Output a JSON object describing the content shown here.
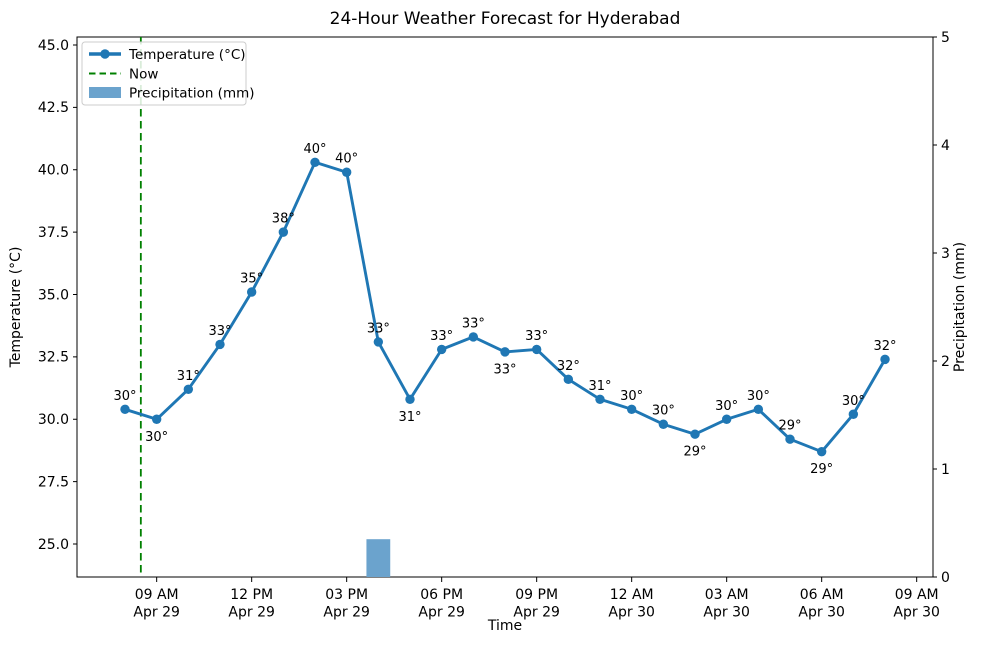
{
  "chart_data": {
    "type": "line+bar",
    "title": "24-Hour Weather Forecast for Hyderabad",
    "xlabel": "Time",
    "ylabel_left": "Temperature (°C)",
    "ylabel_right": "Precipitation (mm)",
    "grid": false,
    "legend_position": "upper-left",
    "legend": [
      {
        "kind": "line-marker",
        "label": "Temperature (°C)",
        "color": "#1f77b4"
      },
      {
        "kind": "dashed-line",
        "label": "Now",
        "color": "#008000"
      },
      {
        "kind": "patch",
        "label": "Precipitation (mm)",
        "color": "#6ba3cd"
      }
    ],
    "now_line": {
      "label": "Now",
      "color": "#008000",
      "hour_offset": 0.5
    },
    "line_color": "#1f77b4",
    "bar_color": "#6ba3cd",
    "ylim_right": [
      0,
      5
    ],
    "left_tick_range": [
      25.0,
      45.0
    ],
    "axes": {
      "left_ticks": [
        {
          "value": 45.0,
          "label": "45.0"
        },
        {
          "value": 42.5,
          "label": "42.5"
        },
        {
          "value": 40.0,
          "label": "40.0"
        },
        {
          "value": 37.5,
          "label": "37.5"
        },
        {
          "value": 35.0,
          "label": "35.0"
        },
        {
          "value": 32.5,
          "label": "32.5"
        },
        {
          "value": 30.0,
          "label": "30.0"
        },
        {
          "value": 27.5,
          "label": "27.5"
        },
        {
          "value": 25.0,
          "label": "25.0"
        }
      ],
      "right_ticks": [
        {
          "value": 5,
          "label": "5"
        },
        {
          "value": 4,
          "label": "4"
        },
        {
          "value": 3,
          "label": "3"
        },
        {
          "value": 2,
          "label": "2"
        },
        {
          "value": 1,
          "label": "1"
        },
        {
          "value": 0,
          "label": "0"
        }
      ],
      "x_ticks": [
        {
          "hour_offset": 1,
          "line1": "09 AM",
          "line2": "Apr 29"
        },
        {
          "hour_offset": 4,
          "line1": "12 PM",
          "line2": "Apr 29"
        },
        {
          "hour_offset": 7,
          "line1": "03 PM",
          "line2": "Apr 29"
        },
        {
          "hour_offset": 10,
          "line1": "06 PM",
          "line2": "Apr 29"
        },
        {
          "hour_offset": 13,
          "line1": "09 PM",
          "line2": "Apr 29"
        },
        {
          "hour_offset": 16,
          "line1": "12 AM",
          "line2": "Apr 30"
        },
        {
          "hour_offset": 19,
          "line1": "03 AM",
          "line2": "Apr 30"
        },
        {
          "hour_offset": 22,
          "line1": "06 AM",
          "line2": "Apr 30"
        },
        {
          "hour_offset": 25,
          "line1": "09 AM",
          "line2": "Apr 30"
        }
      ]
    },
    "points": [
      {
        "time": "08 AM",
        "date": "Apr 29",
        "temp": 30.4,
        "temp_label": "30°",
        "label_side": "above",
        "precip": 0
      },
      {
        "time": "09 AM",
        "date": "Apr 29",
        "temp": 30.0,
        "temp_label": "30°",
        "label_side": "below",
        "precip": 0
      },
      {
        "time": "10 AM",
        "date": "Apr 29",
        "temp": 31.2,
        "temp_label": "31°",
        "label_side": "above",
        "precip": 0
      },
      {
        "time": "11 AM",
        "date": "Apr 29",
        "temp": 33.0,
        "temp_label": "33°",
        "label_side": "above",
        "precip": 0
      },
      {
        "time": "12 PM",
        "date": "Apr 29",
        "temp": 35.1,
        "temp_label": "35°",
        "label_side": "above",
        "precip": 0
      },
      {
        "time": "01 PM",
        "date": "Apr 29",
        "temp": 37.5,
        "temp_label": "38°",
        "label_side": "above",
        "precip": 0
      },
      {
        "time": "02 PM",
        "date": "Apr 29",
        "temp": 40.3,
        "temp_label": "40°",
        "label_side": "above",
        "precip": 0
      },
      {
        "time": "03 PM",
        "date": "Apr 29",
        "temp": 39.9,
        "temp_label": "40°",
        "label_side": "above",
        "precip": 0
      },
      {
        "time": "04 PM",
        "date": "Apr 29",
        "temp": 33.1,
        "temp_label": "33°",
        "label_side": "above",
        "precip": 0.35
      },
      {
        "time": "05 PM",
        "date": "Apr 29",
        "temp": 30.8,
        "temp_label": "31°",
        "label_side": "below",
        "precip": 0
      },
      {
        "time": "06 PM",
        "date": "Apr 29",
        "temp": 32.8,
        "temp_label": "33°",
        "label_side": "above",
        "precip": 0
      },
      {
        "time": "07 PM",
        "date": "Apr 29",
        "temp": 33.3,
        "temp_label": "33°",
        "label_side": "above",
        "precip": 0
      },
      {
        "time": "08 PM",
        "date": "Apr 29",
        "temp": 32.7,
        "temp_label": "33°",
        "label_side": "below",
        "precip": 0
      },
      {
        "time": "09 PM",
        "date": "Apr 29",
        "temp": 32.8,
        "temp_label": "33°",
        "label_side": "above",
        "precip": 0
      },
      {
        "time": "10 PM",
        "date": "Apr 29",
        "temp": 31.6,
        "temp_label": "32°",
        "label_side": "above",
        "precip": 0
      },
      {
        "time": "11 PM",
        "date": "Apr 29",
        "temp": 30.8,
        "temp_label": "31°",
        "label_side": "above",
        "precip": 0
      },
      {
        "time": "12 AM",
        "date": "Apr 30",
        "temp": 30.4,
        "temp_label": "30°",
        "label_side": "above",
        "precip": 0
      },
      {
        "time": "01 AM",
        "date": "Apr 30",
        "temp": 29.8,
        "temp_label": "30°",
        "label_side": "above",
        "precip": 0
      },
      {
        "time": "02 AM",
        "date": "Apr 30",
        "temp": 29.4,
        "temp_label": "29°",
        "label_side": "below",
        "precip": 0
      },
      {
        "time": "03 AM",
        "date": "Apr 30",
        "temp": 30.0,
        "temp_label": "30°",
        "label_side": "above",
        "precip": 0
      },
      {
        "time": "04 AM",
        "date": "Apr 30",
        "temp": 30.4,
        "temp_label": "30°",
        "label_side": "above",
        "precip": 0
      },
      {
        "time": "05 AM",
        "date": "Apr 30",
        "temp": 29.2,
        "temp_label": "29°",
        "label_side": "above",
        "precip": 0
      },
      {
        "time": "06 AM",
        "date": "Apr 30",
        "temp": 28.7,
        "temp_label": "29°",
        "label_side": "below",
        "precip": 0
      },
      {
        "time": "07 AM",
        "date": "Apr 30",
        "temp": 30.2,
        "temp_label": "30°",
        "label_side": "above",
        "precip": 0
      },
      {
        "time": "08 AM",
        "date": "Apr 30",
        "temp": 32.4,
        "temp_label": "32°",
        "label_side": "above",
        "precip": 0
      }
    ]
  }
}
